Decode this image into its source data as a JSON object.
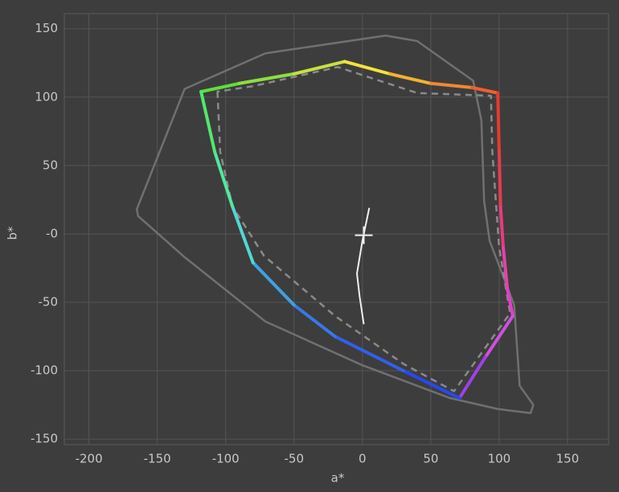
{
  "chart_data": {
    "type": "line",
    "x_label": "a*",
    "y_label": "b*",
    "xlim": [
      -218,
      180
    ],
    "ylim": [
      -154,
      161
    ],
    "xticks": [
      -200,
      -150,
      -100,
      -50,
      0,
      50,
      100,
      150
    ],
    "yticks": [
      -150,
      -100,
      -50,
      {
        "value": 0,
        "label": "-0"
      },
      50,
      100,
      150
    ],
    "grid": true,
    "series": [
      {
        "color": "#707070",
        "style": "solid",
        "width": 2.5,
        "closed": true,
        "x": [
          -165,
          -130,
          -71,
          17,
          40,
          81,
          87,
          89,
          93,
          111,
          115,
          125,
          123,
          99,
          64,
          0,
          -71,
          -130,
          -164
        ],
        "y": [
          18,
          106,
          132,
          145,
          141,
          112,
          83,
          24,
          -5,
          -52,
          -111,
          -125,
          -131,
          -128,
          -120,
          -96,
          -64,
          -17,
          13
        ]
      },
      {
        "color": "#8a8a8a",
        "style": "dashed",
        "width": 2.5,
        "closed": true,
        "x": [
          -106,
          -104,
          -95,
          -72,
          -20,
          30,
          67,
          108,
          100,
          95,
          94,
          40,
          -18,
          -80
        ],
        "y": [
          104,
          60,
          20,
          -16,
          -60,
          -95,
          -115,
          -58,
          -10,
          60,
          101,
          103,
          122,
          108
        ]
      },
      {
        "style": "solid",
        "width": 4,
        "closed": true,
        "x": [
          -118,
          -90,
          -50,
          -13,
          20,
          50,
          80,
          99,
          100,
          101,
          103,
          106,
          110,
          90,
          71,
          30,
          -20,
          -50,
          -80,
          -95,
          -108
        ],
        "y": [
          104,
          110,
          117,
          126,
          117,
          110,
          107,
          103,
          60,
          20,
          -10,
          -40,
          -60,
          -90,
          -120,
          -100,
          -75,
          -52,
          -21,
          20,
          60
        ],
        "colors": [
          "#5de03a",
          "#8ae040",
          "#c8e040",
          "#f5e23a",
          "#f5b030",
          "#f08830",
          "#f06030",
          "#e83a30",
          "#e83a50",
          "#e83a80",
          "#e840a8",
          "#e040c8",
          "#d050e0",
          "#a040e8",
          "#2848f0",
          "#3060f0",
          "#3878e8",
          "#40a0e0",
          "#50d8d0",
          "#50e8a0",
          "#50e870"
        ]
      },
      {
        "color": "#f0f0f0",
        "style": "solid",
        "width": 2,
        "closed": false,
        "x": [
          5,
          0,
          -4,
          -2,
          1
        ],
        "y": [
          19,
          -5,
          -29,
          -46,
          -66
        ]
      },
      {
        "color": "#f0f0f0",
        "style": "cross",
        "x": [
          1
        ],
        "y": [
          -1
        ]
      }
    ]
  }
}
